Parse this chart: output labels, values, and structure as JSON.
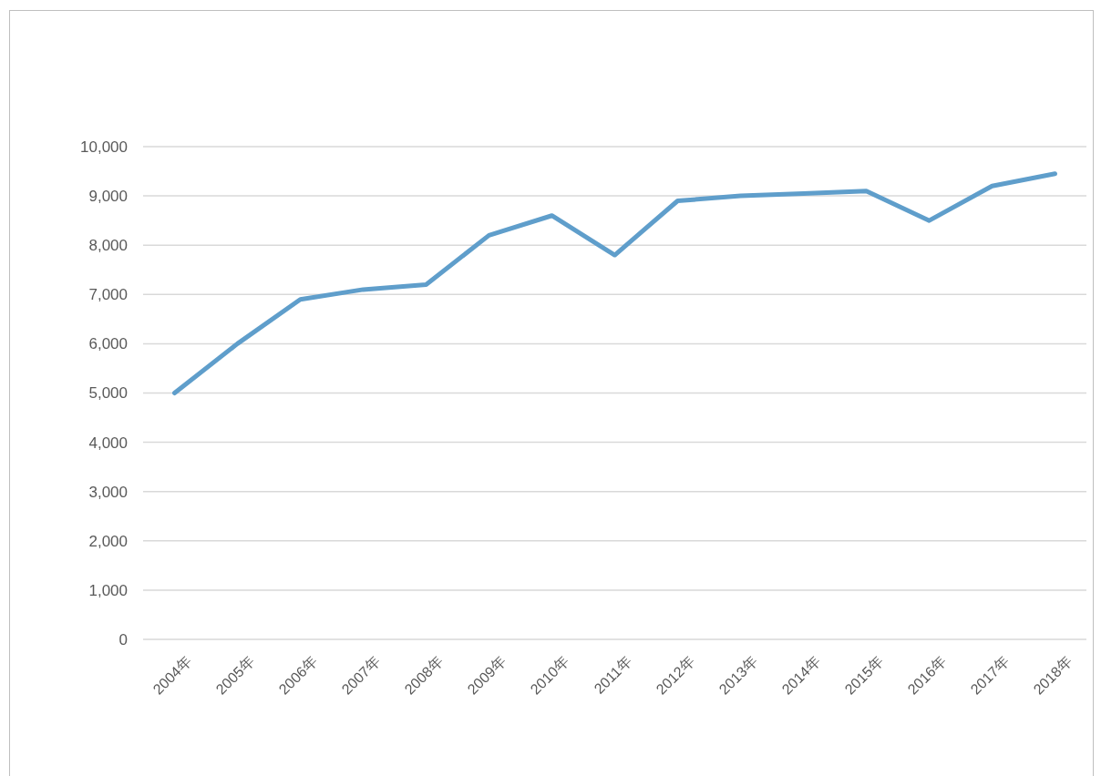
{
  "chart_data": {
    "type": "line",
    "categories": [
      "2004年",
      "2005年",
      "2006年",
      "2007年",
      "2008年",
      "2009年",
      "2010年",
      "2011年",
      "2012年",
      "2013年",
      "2014年",
      "2015年",
      "2016年",
      "2017年",
      "2018年"
    ],
    "series": [
      {
        "color": "#5f9ecb",
        "values": [
          5000,
          6000,
          6900,
          7100,
          7200,
          8200,
          8600,
          7800,
          8900,
          9000,
          9050,
          9100,
          8500,
          9200,
          9450
        ]
      }
    ],
    "ylim": [
      0,
      10000
    ],
    "yticks": [
      0,
      {
        "value": 1000,
        "label": "1,000"
      },
      {
        "value": 2000,
        "label": "2,000"
      },
      {
        "value": 3000,
        "label": "3,000"
      },
      {
        "value": 4000,
        "label": "4,000"
      },
      {
        "value": 5000,
        "label": "5,000"
      },
      {
        "value": 6000,
        "label": "6,000"
      },
      {
        "value": 7000,
        "label": "7,000"
      },
      {
        "value": 8000,
        "label": "8,000"
      },
      {
        "value": 9000,
        "label": "9,000"
      },
      {
        "value": 10000,
        "label": "10,000"
      }
    ],
    "grid": "y",
    "marker": "none",
    "line_style": "solid"
  }
}
